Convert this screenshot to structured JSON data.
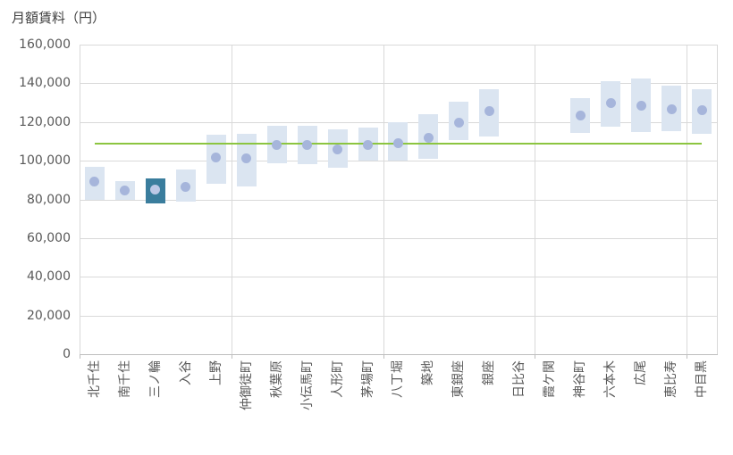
{
  "title": "月額賃料（円）",
  "chart_data": {
    "type": "bar",
    "subtype": "floating-range-boxes-with-mean-dots",
    "title": "月額賃料（円）",
    "categories": [
      "北千住",
      "南千住",
      "三ノ輪",
      "入谷",
      "上野",
      "仲御徒町",
      "秋葉原",
      "小伝馬町",
      "人形町",
      "茅場町",
      "八丁堀",
      "築地",
      "東銀座",
      "銀座",
      "日比谷",
      "霞ケ関",
      "神谷町",
      "六本木",
      "広尾",
      "恵比寿",
      "中目黒"
    ],
    "series": [
      {
        "name": "range-low",
        "values": [
          80000,
          80000,
          78000,
          79000,
          88000,
          87000,
          98500,
          98000,
          96000,
          100000,
          100000,
          101000,
          110500,
          112500,
          null,
          null,
          114500,
          117500,
          115000,
          115500,
          114000
        ]
      },
      {
        "name": "range-high",
        "values": [
          97000,
          89500,
          91000,
          95500,
          113500,
          114000,
          118000,
          118000,
          116000,
          117000,
          120000,
          124000,
          130500,
          137000,
          null,
          null,
          132500,
          141000,
          142500,
          139000,
          137000
        ]
      },
      {
        "name": "mean",
        "values": [
          89000,
          84500,
          85000,
          86500,
          101500,
          101000,
          108000,
          108000,
          106000,
          108000,
          109000,
          112000,
          119500,
          125500,
          null,
          null,
          123500,
          130000,
          128500,
          126500,
          126000
        ]
      }
    ],
    "reference_line": {
      "value": 109000
    },
    "highlight_category": "三ノ輪",
    "xlabel": "",
    "ylabel": "月額賃料（円）",
    "ylim": [
      0,
      160000
    ],
    "ytick_step": 20000,
    "ytick_labels": [
      "0",
      "20,000",
      "40,000",
      "60,000",
      "80,000",
      "100,000",
      "120,000",
      "140,000",
      "160,000"
    ],
    "xtick_label_rotation_deg": -90,
    "grid": {
      "horizontal": true,
      "vertical_every_categories": 5
    },
    "legend": "none",
    "colors": {
      "range_box": "#dbe5f1",
      "mean_dot": "#a6b5db",
      "highlight_box": "#3a7d9d",
      "highlight_dot": "#bcc8e6",
      "reference_line": "#8cc540",
      "gridline": "#d9d9d9",
      "axis_line": "#bfbfbf",
      "tick_text": "#595959",
      "title_text": "#404040",
      "background": "#ffffff"
    }
  }
}
